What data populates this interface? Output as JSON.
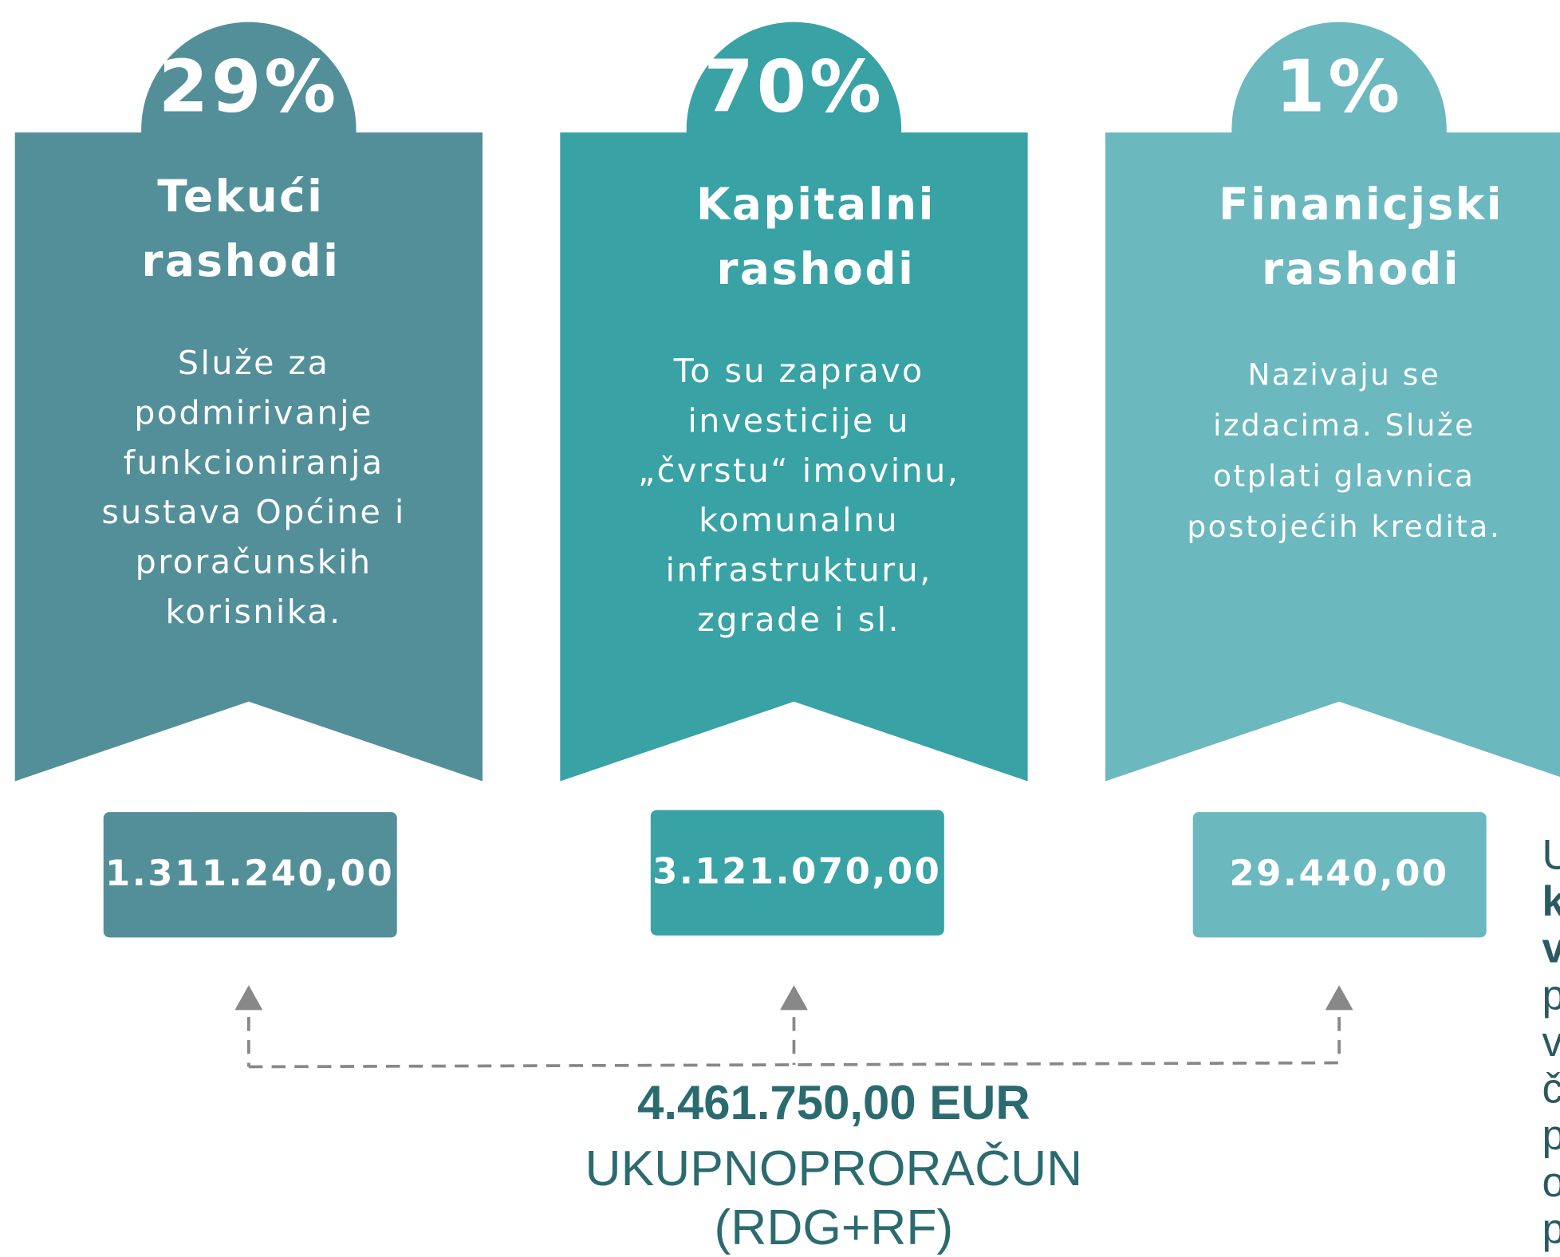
{
  "cards": [
    {
      "percent": "29%",
      "title": [
        "Tekući",
        "rashodi"
      ],
      "description": [
        "Služe za",
        "podmirivanje",
        "funkcioniranja",
        "sustava Općine i",
        "proračunskih",
        "korisnika."
      ],
      "amount": "1.311.240,00"
    },
    {
      "percent": "70%",
      "title": [
        "Kapitalni",
        "rashodi"
      ],
      "description": [
        "To su zapravo",
        "investicije u",
        "„čvrstu“ imovinu,",
        "komunalnu",
        "infrastrukturu,",
        "zgrade i sl."
      ],
      "amount": "3.121.070,00"
    },
    {
      "percent": "1%",
      "title": [
        "Finanicjski",
        "rashodi"
      ],
      "description": [
        "Nazivaju se",
        "izdacima. Služe",
        "otplati glavnica",
        "postojećih kredita."
      ],
      "amount": "29.440,00"
    }
  ],
  "total": {
    "amount": "4.461.750,00 EUR",
    "label": "UKUPNOPRORAČUN",
    "sub": "(RDG+RF)"
  },
  "side_text": [
    "U",
    "k",
    "v",
    "p",
    "v",
    "č",
    "p",
    "o",
    "p"
  ]
}
